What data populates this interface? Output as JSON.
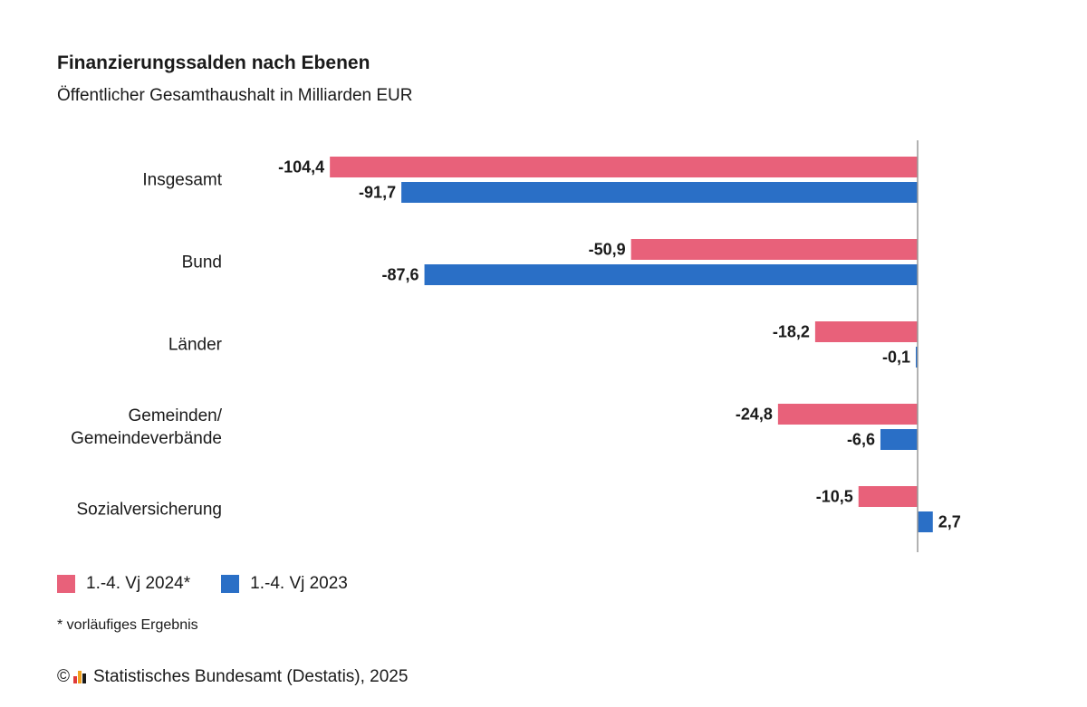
{
  "header": {
    "title": "Finanzierungssalden nach Ebenen",
    "subtitle": "Öffentlicher Gesamthaushalt in Milliarden EUR"
  },
  "colors": {
    "series_2024": "#e8617a",
    "series_2023": "#2a6fc6",
    "axis": "#999999",
    "logo_bars": [
      "#e03a3a",
      "#f0a020",
      "#1a1a1a"
    ]
  },
  "chart_data": {
    "type": "bar",
    "orientation": "horizontal",
    "categories": [
      "Insgesamt",
      "Bund",
      "Länder",
      "Gemeinden/\nGemeindeverbände",
      "Sozialversicherung"
    ],
    "series": [
      {
        "name": "1.-4. Vj 2024*",
        "values": [
          -104.4,
          -50.9,
          -18.2,
          -24.8,
          -10.5
        ],
        "labels": [
          "-104,4",
          "-50,9",
          "-18,2",
          "-24,8",
          "-10,5"
        ]
      },
      {
        "name": "1.-4. Vj 2023",
        "values": [
          -91.7,
          -87.6,
          -0.1,
          -6.6,
          2.7
        ],
        "labels": [
          "-91,7",
          "-87,6",
          "-0,1",
          "-6,6",
          "2,7"
        ]
      }
    ],
    "xlim": [
      -110,
      5
    ],
    "grid": false,
    "legend_position": "bottom-left"
  },
  "legend": {
    "items": [
      {
        "label": "1.-4. Vj 2024*"
      },
      {
        "label": "1.-4. Vj 2023"
      }
    ]
  },
  "footnote": "* vorläufiges Ergebnis",
  "source": {
    "copyright": "©",
    "text": "Statistisches Bundesamt (Destatis), 2025"
  }
}
